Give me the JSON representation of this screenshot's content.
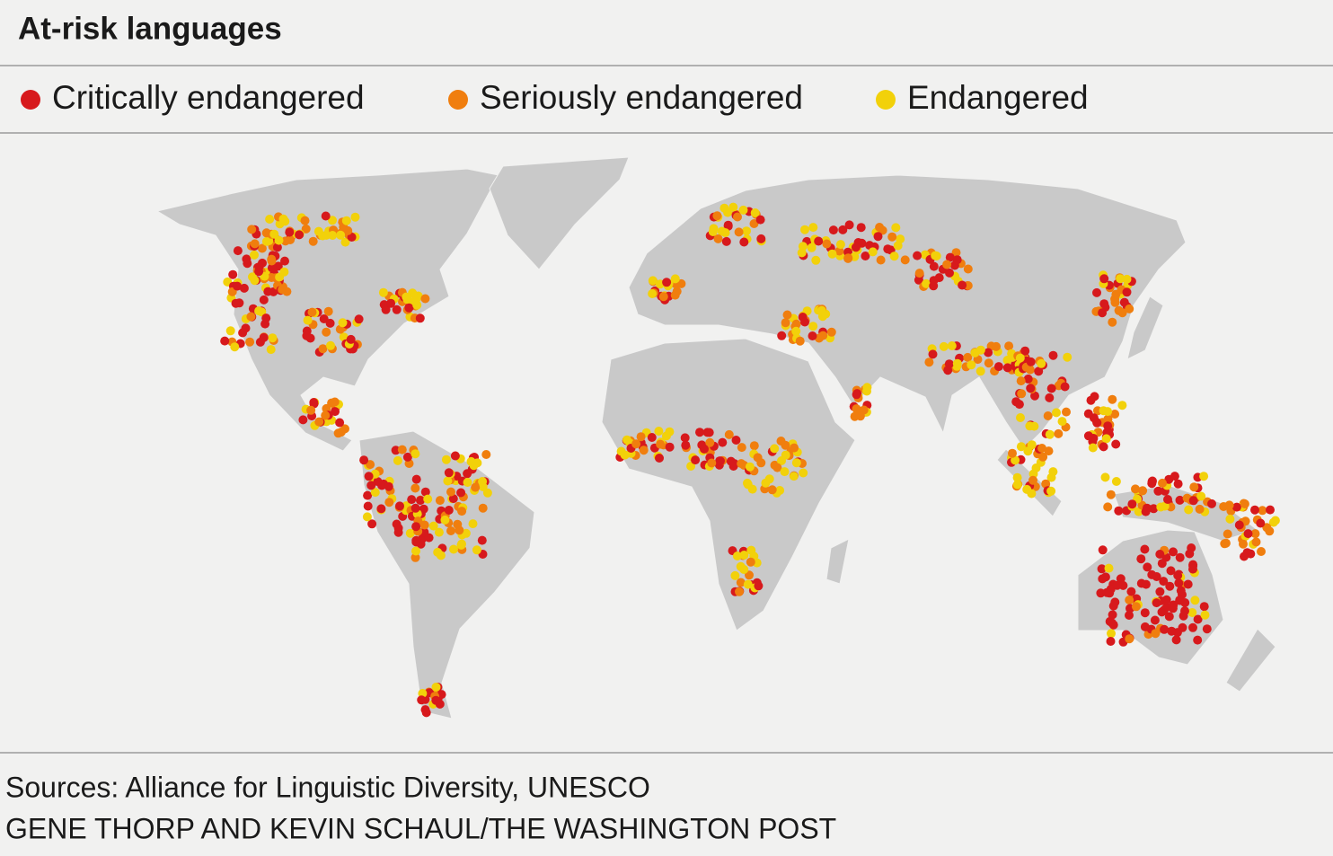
{
  "title": "At-risk languages",
  "legend": [
    {
      "label": "Critically endangered",
      "color": "#d7191c"
    },
    {
      "label": "Seriously endangered",
      "color": "#f07e0e"
    },
    {
      "label": "Endangered",
      "color": "#f2d10a"
    }
  ],
  "sources": "Sources: Alliance for Linguistic Diversity, UNESCO",
  "credit": "GENE THORP AND KEVIN SCHAUL/THE WASHINGTON POST"
}
